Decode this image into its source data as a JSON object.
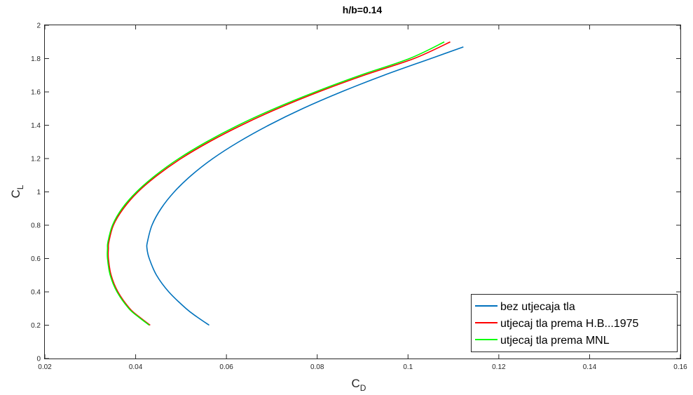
{
  "chart_data": {
    "type": "line",
    "title": "h/b=0.14",
    "xlabel": {
      "main": "C",
      "sub": "D"
    },
    "ylabel": {
      "main": "C",
      "sub": "L"
    },
    "xlim": [
      0.02,
      0.16
    ],
    "ylim": [
      0,
      2
    ],
    "xticks": [
      0.02,
      0.04,
      0.06,
      0.08,
      0.1,
      0.12,
      0.14,
      0.16
    ],
    "xtick_labels": [
      "0.02",
      "0.04",
      "0.06",
      "0.08",
      "0.1",
      "0.12",
      "0.14",
      "0.16"
    ],
    "yticks": [
      0,
      0.2,
      0.4,
      0.6,
      0.8,
      1,
      1.2,
      1.4,
      1.6,
      1.8,
      2
    ],
    "ytick_labels": [
      "0",
      "0.2",
      "0.4",
      "0.6",
      "0.8",
      "1",
      "1.2",
      "1.4",
      "1.6",
      "1.8",
      "2"
    ],
    "grid": false,
    "legend_position": "bottom-right",
    "series": [
      {
        "name": "bez utjecaja tla",
        "color": "#0072BD",
        "points": [
          [
            0.0562,
            0.2
          ],
          [
            0.0535,
            0.25
          ],
          [
            0.0511,
            0.3
          ],
          [
            0.0473,
            0.4
          ],
          [
            0.0446,
            0.5
          ],
          [
            0.043,
            0.6
          ],
          [
            0.0425,
            0.66
          ],
          [
            0.0426,
            0.7
          ],
          [
            0.0436,
            0.8
          ],
          [
            0.0456,
            0.9
          ],
          [
            0.0485,
            1.0
          ],
          [
            0.0523,
            1.1
          ],
          [
            0.057,
            1.2
          ],
          [
            0.0627,
            1.3
          ],
          [
            0.0693,
            1.4
          ],
          [
            0.0768,
            1.5
          ],
          [
            0.0853,
            1.6
          ],
          [
            0.0947,
            1.7
          ],
          [
            0.105,
            1.8
          ],
          [
            0.1122,
            1.87
          ]
        ]
      },
      {
        "name": "utjecaj tla prema H.B...1975",
        "color": "#FF0000",
        "points": [
          [
            0.0432,
            0.2
          ],
          [
            0.0408,
            0.25
          ],
          [
            0.0387,
            0.3
          ],
          [
            0.0361,
            0.4
          ],
          [
            0.0346,
            0.5
          ],
          [
            0.034,
            0.6
          ],
          [
            0.034,
            0.66
          ],
          [
            0.0341,
            0.7
          ],
          [
            0.0351,
            0.8
          ],
          [
            0.0373,
            0.9
          ],
          [
            0.0405,
            1.0
          ],
          [
            0.0448,
            1.1
          ],
          [
            0.05,
            1.2
          ],
          [
            0.0562,
            1.3
          ],
          [
            0.0633,
            1.4
          ],
          [
            0.0713,
            1.5
          ],
          [
            0.0803,
            1.6
          ],
          [
            0.0903,
            1.7
          ],
          [
            0.1013,
            1.8
          ],
          [
            0.1093,
            1.9
          ]
        ]
      },
      {
        "name": "utjecaj tla prema MNL",
        "color": "#00FF00",
        "points": [
          [
            0.043,
            0.2
          ],
          [
            0.0406,
            0.25
          ],
          [
            0.0385,
            0.3
          ],
          [
            0.0359,
            0.4
          ],
          [
            0.0344,
            0.5
          ],
          [
            0.0338,
            0.6
          ],
          [
            0.0338,
            0.66
          ],
          [
            0.0339,
            0.7
          ],
          [
            0.0349,
            0.8
          ],
          [
            0.037,
            0.9
          ],
          [
            0.0402,
            1.0
          ],
          [
            0.0444,
            1.1
          ],
          [
            0.0495,
            1.2
          ],
          [
            0.0556,
            1.3
          ],
          [
            0.0626,
            1.4
          ],
          [
            0.0706,
            1.5
          ],
          [
            0.0796,
            1.6
          ],
          [
            0.0895,
            1.7
          ],
          [
            0.1003,
            1.8
          ],
          [
            0.108,
            1.9
          ]
        ]
      }
    ]
  }
}
